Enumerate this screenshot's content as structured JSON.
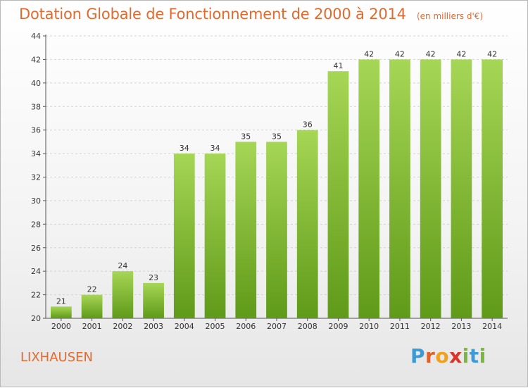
{
  "title": "Dotation Globale de Fonctionnement de 2000 à 2014",
  "unit": "(en milliers d'€)",
  "commune": "LIXHAUSEN",
  "logo": {
    "letters": [
      {
        "ch": "P",
        "color": "#3d9ad6"
      },
      {
        "ch": "r",
        "color": "#e0622a"
      },
      {
        "ch": "o",
        "color": "#f0a21a"
      },
      {
        "ch": "x",
        "color": "#d9352b"
      },
      {
        "ch": "i",
        "color": "#7ab640"
      },
      {
        "ch": "t",
        "color": "#3d9ad6"
      },
      {
        "ch": "i",
        "color": "#7ab640"
      }
    ]
  },
  "colors": {
    "title": "#e06a2f",
    "bar_light": "#a6d655",
    "bar_dark": "#5f9a18",
    "grid": "#d4d4d4"
  },
  "chart_data": {
    "type": "bar",
    "categories": [
      "2000",
      "2001",
      "2002",
      "2003",
      "2004",
      "2005",
      "2006",
      "2007",
      "2008",
      "2009",
      "2010",
      "2011",
      "2012",
      "2013",
      "2014"
    ],
    "values": [
      21,
      22,
      24,
      23,
      34,
      34,
      35,
      35,
      36,
      41,
      42,
      42,
      42,
      42,
      42
    ],
    "ylim": [
      20,
      44
    ],
    "yticks": [
      20,
      22,
      24,
      26,
      28,
      30,
      32,
      34,
      36,
      38,
      40,
      42,
      44
    ],
    "grid": "horizontal dashed"
  }
}
